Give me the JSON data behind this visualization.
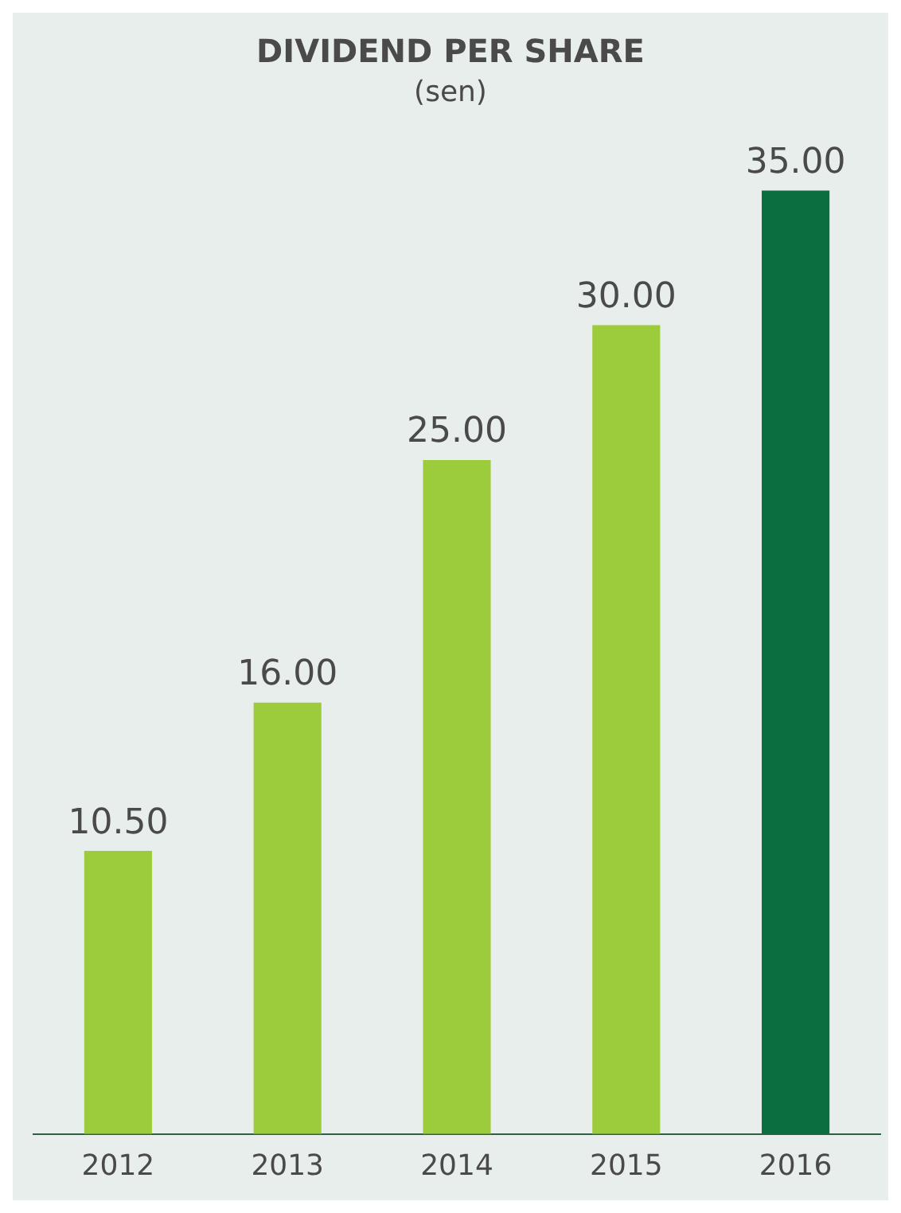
{
  "chart_data": {
    "type": "bar",
    "title": "DIVIDEND PER SHARE",
    "subtitle": "(sen)",
    "categories": [
      "2012",
      "2013",
      "2014",
      "2015",
      "2016"
    ],
    "values": [
      10.5,
      16,
      25,
      30,
      35
    ],
    "colors": [
      "#9ccb3b",
      "#9ccb3b",
      "#9ccb3b",
      "#9ccb3b",
      "#0b6e40"
    ],
    "value_labels": [
      "10.50",
      "16.00",
      "25.00",
      "30.00",
      "35.00"
    ],
    "relative": false,
    "grid": false,
    "legend": false
  }
}
